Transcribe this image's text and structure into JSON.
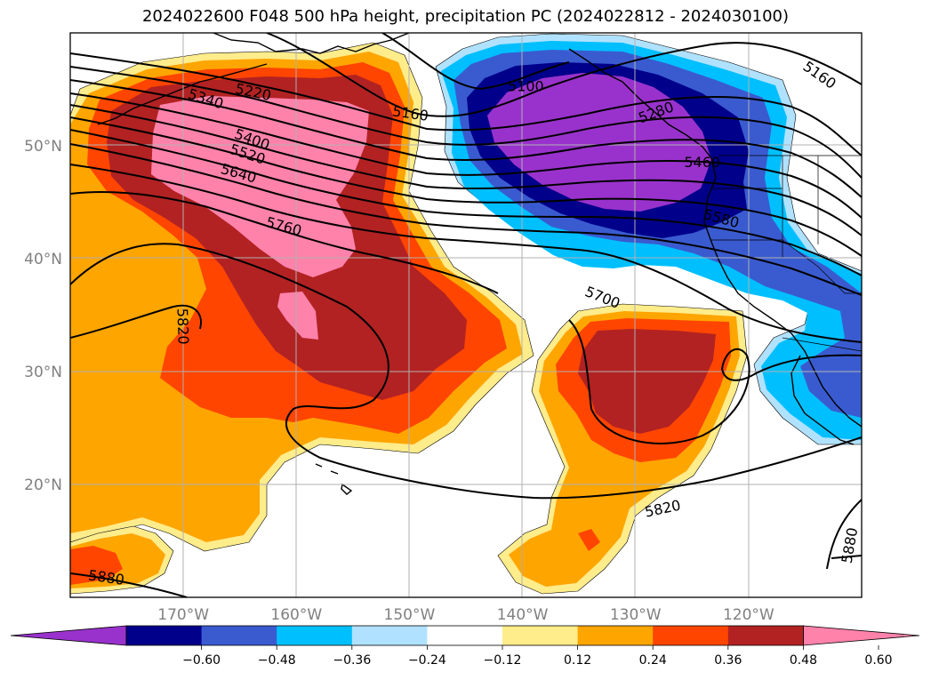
{
  "title": "2024022600 F048 500 hPa height, precipitation PC (2024022812 - 2024030100)",
  "map": {
    "lon_range": [
      -180,
      -110
    ],
    "lat_range": [
      10,
      60
    ],
    "lon_ticks": [
      {
        "value": -170,
        "label": "170°W"
      },
      {
        "value": -160,
        "label": "160°W"
      },
      {
        "value": -150,
        "label": "150°W"
      },
      {
        "value": -140,
        "label": "140°W"
      },
      {
        "value": -130,
        "label": "130°W"
      },
      {
        "value": -120,
        "label": "120°W"
      }
    ],
    "lat_ticks": [
      {
        "value": 20,
        "label": "20°N"
      },
      {
        "value": 30,
        "label": "30°N"
      },
      {
        "value": 40,
        "label": "40°N"
      },
      {
        "value": 50,
        "label": "50°N"
      }
    ],
    "grid": true
  },
  "contour_labels": [
    {
      "text": "5100",
      "lon": -139.7,
      "lat": 55.3,
      "rot": 0
    },
    {
      "text": "5160",
      "lon": -149.9,
      "lat": 52.9,
      "rot": 8
    },
    {
      "text": "5220",
      "lon": -163.8,
      "lat": 54.8,
      "rot": 12
    },
    {
      "text": "5340",
      "lon": -168.0,
      "lat": 54.2,
      "rot": 18
    },
    {
      "text": "5400",
      "lon": -163.9,
      "lat": 50.6,
      "rot": 20
    },
    {
      "text": "5520",
      "lon": -164.3,
      "lat": 49.3,
      "rot": 18
    },
    {
      "text": "5640",
      "lon": -165.1,
      "lat": 47.6,
      "rot": 16
    },
    {
      "text": "5760",
      "lon": -161.1,
      "lat": 42.9,
      "rot": 15
    },
    {
      "text": "5820",
      "lon": -170.0,
      "lat": 34.0,
      "rot": 88
    },
    {
      "text": "5700",
      "lon": -132.9,
      "lat": 36.6,
      "rot": 22
    },
    {
      "text": "5820",
      "lon": -127.6,
      "lat": 17.9,
      "rot": -12
    },
    {
      "text": "5880",
      "lon": -176.8,
      "lat": 11.8,
      "rot": 8
    },
    {
      "text": "5880",
      "lon": -111.1,
      "lat": 14.6,
      "rot": -80
    },
    {
      "text": "5160",
      "lon": -113.7,
      "lat": 56.3,
      "rot": 35
    },
    {
      "text": "5580",
      "lon": -122.4,
      "lat": 43.6,
      "rot": 15
    },
    {
      "text": "5460",
      "lon": -124.1,
      "lat": 48.6,
      "rot": 0
    },
    {
      "text": "5280",
      "lon": -128.2,
      "lat": 53.0,
      "rot": -20
    }
  ],
  "colorbar": {
    "ticks": [
      "−0.60",
      "−0.48",
      "−0.36",
      "−0.24",
      "−0.12",
      "0.12",
      "0.24",
      "0.36",
      "0.48",
      "0.60"
    ],
    "colors": [
      "#9932cc",
      "#00008b",
      "#3a5bd0",
      "#00bfff",
      "#b0e2ff",
      "#ffffff",
      "#ffec8b",
      "#ffa500",
      "#ff4500",
      "#b22222",
      "#ff82ab"
    ]
  },
  "colors": {
    "pink": "#ff82ab",
    "firebrick": "#b22222",
    "orangered": "#ff4500",
    "orange": "#ffa500",
    "yellow": "#ffec8b",
    "lightblue": "#b0e2ff",
    "deepskyblue": "#00bfff",
    "royalblue": "#3a5bd0",
    "navy": "#00008b",
    "purple": "#9932cc",
    "grid": "#b0b0b0",
    "tick_text": "#808080"
  }
}
